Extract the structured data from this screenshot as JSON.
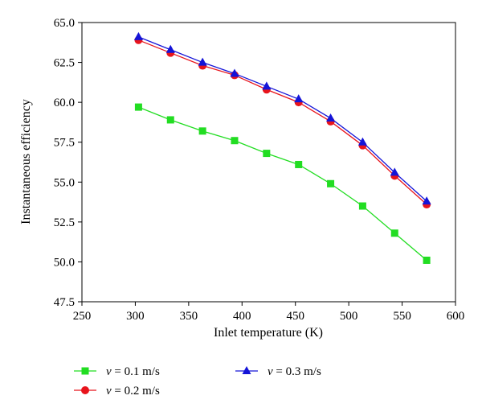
{
  "chart_data": {
    "type": "line",
    "xlabel": "Inlet temperature (K)",
    "ylabel": "Instantaneous efficiency",
    "xlim": [
      250,
      600
    ],
    "ylim": [
      47.5,
      65.0
    ],
    "xticks": [
      250,
      300,
      350,
      400,
      450,
      500,
      550,
      600
    ],
    "yticks": [
      47.5,
      50.0,
      52.5,
      55.0,
      57.5,
      60.0,
      62.5,
      65.0
    ],
    "xtick_labels": [
      "250",
      "300",
      "350",
      "400",
      "450",
      "500",
      "550",
      "600"
    ],
    "ytick_labels": [
      "47.5",
      "50.0",
      "52.5",
      "55.0",
      "57.5",
      "60.0",
      "62.5",
      "65.0"
    ],
    "grid": false,
    "legend_position": "bottom",
    "x": [
      303,
      333,
      363,
      393,
      423,
      453,
      483,
      513,
      543,
      573
    ],
    "series": [
      {
        "name": "v = 0.1 m/s",
        "var": "v",
        "rest": " = 0.1 m/s",
        "color": "#22dd22",
        "marker": "square",
        "values": [
          59.7,
          58.9,
          58.2,
          57.6,
          56.8,
          56.1,
          54.9,
          53.5,
          51.8,
          50.1
        ]
      },
      {
        "name": "v = 0.2 m/s",
        "var": "v",
        "rest": " = 0.2 m/s",
        "color": "#e8141c",
        "marker": "circle",
        "values": [
          63.9,
          63.1,
          62.3,
          61.7,
          60.8,
          60.0,
          58.8,
          57.3,
          55.4,
          53.6
        ]
      },
      {
        "name": "v = 0.3 m/s",
        "var": "v",
        "rest": " = 0.3 m/s",
        "color": "#1414d8",
        "marker": "triangle",
        "values": [
          64.1,
          63.3,
          62.5,
          61.8,
          61.0,
          60.2,
          59.0,
          57.5,
          55.6,
          53.8
        ]
      }
    ]
  }
}
